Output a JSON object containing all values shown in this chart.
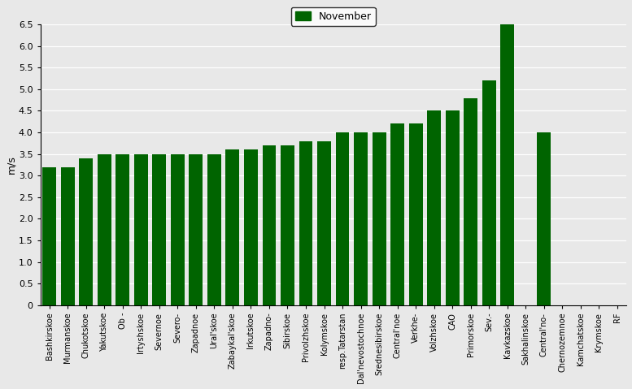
{
  "bar_labels": [
    "Bashkirskoe",
    "Murmanskoe",
    "Chukotskoe",
    "Yakutskoe",
    "Ob -",
    "Irtyshskoe",
    "Severnoe",
    "Severo-",
    "Zapadnoe",
    "Ural'skoe",
    "Zabaykal'skoe",
    "Irkutskoe",
    "Zapadno-",
    "Sibirskoe",
    "Privolzhskoe",
    "Kolymskoe",
    "resp.Tatarstan",
    "Dal'nevostochnoe",
    "Srednesibirskoe",
    "Central'noe",
    "Verkhe-",
    "Volzhskoe",
    "CAO",
    "Primorskoe",
    "Sev.-",
    "Kavkazskoe",
    "Sakhalinskoe",
    "Central'no-",
    "Chernozemnoe",
    "Kamchatskoe",
    "Krymskoe",
    "RF"
  ],
  "bar_values": [
    3.2,
    3.2,
    3.4,
    3.5,
    3.5,
    3.5,
    3.5,
    3.5,
    3.5,
    3.5,
    3.6,
    3.6,
    3.7,
    3.7,
    3.8,
    3.8,
    4.0,
    4.0,
    4.0,
    4.2,
    4.2,
    4.5,
    4.5,
    4.8,
    5.2,
    6.5,
    0.0,
    4.0,
    0.0,
    0.0,
    0.0,
    0.0
  ],
  "bar_color": "#006400",
  "ylabel": "m/s",
  "ylim": [
    0,
    6.5
  ],
  "yticks": [
    0,
    0.5,
    1.0,
    1.5,
    2.0,
    2.5,
    3.0,
    3.5,
    4.0,
    4.5,
    5.0,
    5.5,
    6.0,
    6.5
  ],
  "legend_label": "November",
  "background_color": "#e8e8e8"
}
